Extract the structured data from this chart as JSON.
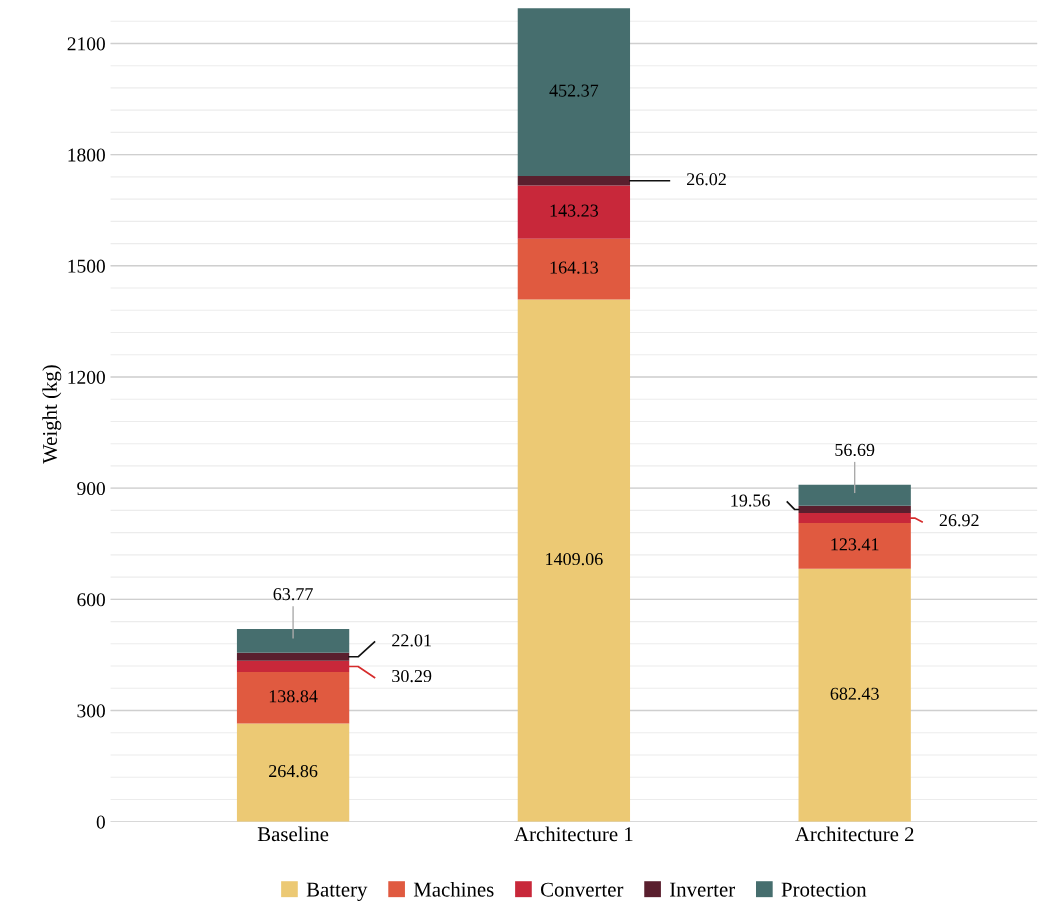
{
  "chart_data": {
    "type": "bar",
    "stacked": true,
    "ylabel": "Weight (kg)",
    "categories": [
      "Baseline",
      "Architecture 1",
      "Architecture 2"
    ],
    "series": [
      {
        "name": "Battery",
        "color": "#ecc974",
        "values": [
          264.86,
          1409.06,
          682.43
        ]
      },
      {
        "name": "Machines",
        "color": "#e05a40",
        "values": [
          138.84,
          164.13,
          123.41
        ]
      },
      {
        "name": "Converter",
        "color": "#c8283a",
        "values": [
          30.29,
          143.23,
          26.92
        ]
      },
      {
        "name": "Inverter",
        "color": "#5a1f2e",
        "values": [
          22.01,
          26.02,
          19.56
        ]
      },
      {
        "name": "Protection",
        "color": "#466e6e",
        "values": [
          63.77,
          452.37,
          56.69
        ]
      }
    ],
    "ylim": [
      0,
      2200
    ],
    "yticks": [
      0,
      300,
      600,
      900,
      1200,
      1500,
      1800,
      2100
    ],
    "grid": "y",
    "legend": "bottom",
    "data_labels": true
  }
}
